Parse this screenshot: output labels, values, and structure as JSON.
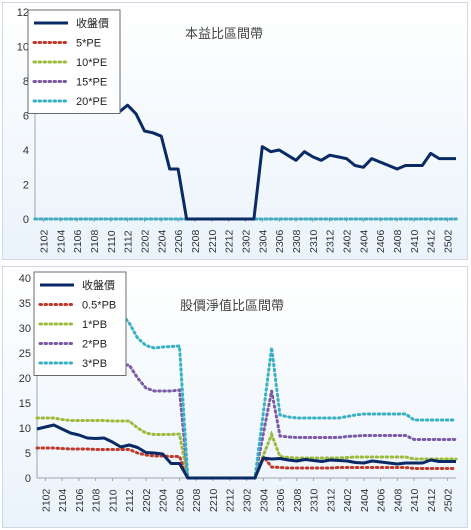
{
  "chart_data": [
    {
      "type": "line",
      "title": "本益比區間帶",
      "ylim": [
        0,
        12
      ],
      "yticks": [
        0,
        2,
        4,
        6,
        8,
        10,
        12
      ],
      "grid": false,
      "legend_position": "top-left",
      "x": [
        "2101",
        "2102",
        "2103",
        "2104",
        "2105",
        "2106",
        "2107",
        "2108",
        "2109",
        "2110",
        "2111",
        "2112",
        "2201",
        "2202",
        "2203",
        "2204",
        "2205",
        "2206",
        "2207",
        "2208",
        "2209",
        "2210",
        "2211",
        "2212",
        "2301",
        "2302",
        "2303",
        "2304",
        "2305",
        "2306",
        "2307",
        "2308",
        "2309",
        "2310",
        "2311",
        "2312",
        "2401",
        "2402",
        "2403",
        "2404",
        "2405",
        "2406",
        "2407",
        "2408",
        "2409",
        "2410",
        "2411",
        "2412",
        "2501",
        "2502",
        "2503"
      ],
      "xtick_labels": [
        "2102",
        "2104",
        "2106",
        "2108",
        "2110",
        "2112",
        "2202",
        "2204",
        "2206",
        "2208",
        "2210",
        "2212",
        "2302",
        "2304",
        "2306",
        "2308",
        "2310",
        "2312",
        "2402",
        "2404",
        "2406",
        "2408",
        "2410",
        "2412",
        "2502"
      ],
      "series": [
        {
          "name": "收盤價",
          "color": "#0a2a66",
          "style": "solid",
          "values": [
            9.8,
            10.2,
            10.6,
            9.8,
            9.0,
            8.6,
            8.2,
            7.9,
            7.6,
            7.2,
            6.2,
            6.6,
            6.1,
            5.1,
            5.0,
            4.8,
            2.9,
            2.9,
            0,
            0,
            0,
            0,
            0,
            0,
            0,
            0,
            0,
            4.2,
            3.9,
            4.0,
            3.7,
            3.4,
            3.9,
            3.6,
            3.4,
            3.7,
            3.6,
            3.5,
            3.1,
            3.0,
            3.5,
            3.3,
            3.1,
            2.9,
            3.1,
            3.1,
            3.1,
            3.8,
            3.5,
            3.5,
            3.5
          ]
        },
        {
          "name": "5*PE",
          "color": "#c0392b",
          "style": "dotted",
          "values": [
            0,
            0,
            0,
            0,
            0,
            0,
            0,
            0,
            0,
            0,
            0,
            0,
            0,
            0,
            0,
            0,
            0,
            0,
            0,
            0,
            0,
            0,
            0,
            0,
            0,
            0,
            0,
            0,
            0,
            0,
            0,
            0,
            0,
            0,
            0,
            0,
            0,
            0,
            0,
            0,
            0,
            0,
            0,
            0,
            0,
            0,
            0,
            0,
            0,
            0,
            0
          ]
        },
        {
          "name": "10*PE",
          "color": "#9bbb3a",
          "style": "dotted",
          "values": [
            0,
            0,
            0,
            0,
            0,
            0,
            0,
            0,
            0,
            0,
            0,
            0,
            0,
            0,
            0,
            0,
            0,
            0,
            0,
            0,
            0,
            0,
            0,
            0,
            0,
            0,
            0,
            0,
            0,
            0,
            0,
            0,
            0,
            0,
            0,
            0,
            0,
            0,
            0,
            0,
            0,
            0,
            0,
            0,
            0,
            0,
            0,
            0,
            0,
            0,
            0
          ]
        },
        {
          "name": "15*PE",
          "color": "#7b5aa6",
          "style": "dotted",
          "values": [
            0,
            0,
            0,
            0,
            0,
            0,
            0,
            0,
            0,
            0,
            0,
            0,
            0,
            0,
            0,
            0,
            0,
            0,
            0,
            0,
            0,
            0,
            0,
            0,
            0,
            0,
            0,
            0,
            0,
            0,
            0,
            0,
            0,
            0,
            0,
            0,
            0,
            0,
            0,
            0,
            0,
            0,
            0,
            0,
            0,
            0,
            0,
            0,
            0,
            0,
            0
          ]
        },
        {
          "name": "20*PE",
          "color": "#3ab0c4",
          "style": "dotted",
          "values": [
            0,
            0,
            0,
            0,
            0,
            0,
            0,
            0,
            0,
            0,
            0,
            0,
            0,
            0,
            0,
            0,
            0,
            0,
            0,
            0,
            0,
            0,
            0,
            0,
            0,
            0,
            0,
            0,
            0,
            0,
            0,
            0,
            0,
            0,
            0,
            0,
            0,
            0,
            0,
            0,
            0,
            0,
            0,
            0,
            0,
            0,
            0,
            0,
            0,
            0,
            0
          ]
        }
      ]
    },
    {
      "type": "line",
      "title": "股價淨值比區間帶",
      "ylim": [
        0,
        40
      ],
      "yticks": [
        0,
        5,
        10,
        15,
        20,
        25,
        30,
        35,
        40
      ],
      "grid": false,
      "legend_position": "top-left",
      "x": [
        "2101",
        "2102",
        "2103",
        "2104",
        "2105",
        "2106",
        "2107",
        "2108",
        "2109",
        "2110",
        "2111",
        "2112",
        "2201",
        "2202",
        "2203",
        "2204",
        "2205",
        "2206",
        "2207",
        "2208",
        "2209",
        "2210",
        "2211",
        "2212",
        "2301",
        "2302",
        "2303",
        "2304",
        "2305",
        "2306",
        "2307",
        "2308",
        "2309",
        "2310",
        "2311",
        "2312",
        "2401",
        "2402",
        "2403",
        "2404",
        "2405",
        "2406",
        "2407",
        "2408",
        "2409",
        "2410",
        "2411",
        "2412",
        "2501",
        "2502",
        "2503"
      ],
      "xtick_labels": [
        "2102",
        "2104",
        "2106",
        "2108",
        "2110",
        "2112",
        "2202",
        "2204",
        "2206",
        "2208",
        "2210",
        "2212",
        "2302",
        "2304",
        "2306",
        "2308",
        "2310",
        "2312",
        "2402",
        "2404",
        "2406",
        "2408",
        "2410",
        "2412",
        "2502"
      ],
      "series": [
        {
          "name": "收盤價",
          "color": "#0a2a66",
          "style": "solid",
          "values": [
            9.8,
            10.2,
            10.6,
            9.8,
            9.0,
            8.6,
            8.0,
            7.9,
            8.0,
            7.2,
            6.2,
            6.6,
            6.1,
            5.1,
            5.0,
            4.8,
            2.9,
            2.9,
            0,
            0,
            0,
            0,
            0,
            0,
            0,
            0,
            0,
            4.0,
            3.8,
            3.9,
            3.6,
            3.4,
            3.7,
            3.5,
            3.3,
            3.6,
            3.5,
            3.4,
            3.1,
            3.0,
            3.4,
            3.2,
            3.0,
            2.8,
            3.0,
            3.0,
            3.0,
            3.6,
            3.3,
            3.3,
            3.3
          ]
        },
        {
          "name": "0.5*PB",
          "color": "#c0392b",
          "style": "dotted",
          "values": [
            6.0,
            6.0,
            6.0,
            5.9,
            5.8,
            5.8,
            5.8,
            5.7,
            5.7,
            5.7,
            5.7,
            5.7,
            5.0,
            4.6,
            4.4,
            4.4,
            4.3,
            4.3,
            0,
            0,
            0,
            0,
            0,
            0,
            0,
            0,
            0,
            4.3,
            2.2,
            2.1,
            2.0,
            2.0,
            2.0,
            2.0,
            2.0,
            2.0,
            2.1,
            2.1,
            2.1,
            2.1,
            2.1,
            2.1,
            2.1,
            2.1,
            2.1,
            1.9,
            1.9,
            1.9,
            1.9,
            1.9,
            1.9
          ]
        },
        {
          "name": "1*PB",
          "color": "#9bbb3a",
          "style": "dotted",
          "values": [
            12.0,
            12.0,
            12.0,
            11.7,
            11.5,
            11.5,
            11.5,
            11.5,
            11.5,
            11.4,
            11.4,
            11.4,
            10.0,
            9.0,
            8.7,
            8.7,
            8.7,
            8.8,
            0,
            0,
            0,
            0,
            0,
            0,
            0,
            0,
            0,
            4.5,
            8.7,
            4.3,
            4.1,
            4.0,
            4.0,
            4.0,
            4.0,
            4.0,
            4.0,
            4.1,
            4.2,
            4.2,
            4.2,
            4.2,
            4.2,
            4.2,
            4.2,
            3.8,
            3.8,
            3.8,
            3.8,
            3.8,
            3.8
          ]
        },
        {
          "name": "2*PB",
          "color": "#7b5aa6",
          "style": "dotted",
          "values": [
            24.0,
            24.0,
            24.0,
            23.3,
            23.0,
            23.0,
            23.0,
            22.8,
            22.8,
            22.6,
            22.6,
            22.6,
            20.0,
            18.0,
            17.4,
            17.4,
            17.4,
            17.6,
            0,
            0,
            0,
            0,
            0,
            0,
            0,
            0,
            0,
            8.8,
            17.4,
            8.4,
            8.2,
            8.1,
            8.1,
            8.1,
            8.1,
            8.1,
            8.1,
            8.3,
            8.4,
            8.5,
            8.5,
            8.5,
            8.5,
            8.5,
            8.5,
            7.7,
            7.7,
            7.7,
            7.7,
            7.7,
            7.7
          ]
        },
        {
          "name": "3*PB",
          "color": "#3ab0c4",
          "style": "dotted",
          "values": [
            36.0,
            36.0,
            36.0,
            35.0,
            34.5,
            34.0,
            34.0,
            34.0,
            33.5,
            33.0,
            33.0,
            31.0,
            28.0,
            26.5,
            26.0,
            26.2,
            26.3,
            26.4,
            0,
            0,
            0,
            0,
            0,
            0,
            0,
            0,
            0,
            13.0,
            26.1,
            12.6,
            12.2,
            12.0,
            12.0,
            12.0,
            12.0,
            12.0,
            12.0,
            12.3,
            12.6,
            12.8,
            12.8,
            12.8,
            12.8,
            12.8,
            12.8,
            11.6,
            11.6,
            11.6,
            11.6,
            11.6,
            11.6
          ]
        }
      ]
    }
  ]
}
